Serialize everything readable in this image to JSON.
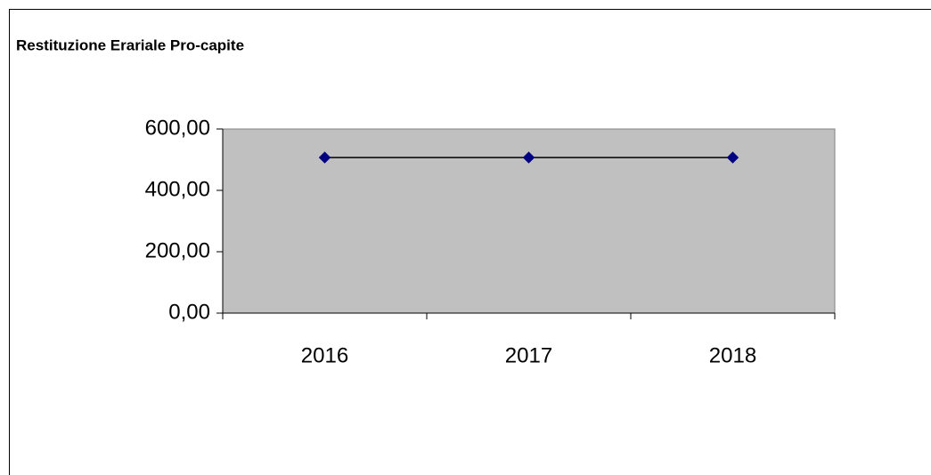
{
  "chart_data": {
    "type": "line",
    "title": "Restituzione Erariale Pro-capite",
    "categories": [
      "2016",
      "2017",
      "2018"
    ],
    "series": [
      {
        "name": "Restituzione Erariale Pro-capite",
        "color": "#000080",
        "values": [
          507,
          507,
          507
        ]
      }
    ],
    "ylim": [
      0,
      600
    ],
    "yticks": [
      {
        "value": 0,
        "label": "0,00"
      },
      {
        "value": 200,
        "label": "200,00"
      },
      {
        "value": 400,
        "label": "400,00"
      },
      {
        "value": 600,
        "label": "600,00"
      }
    ],
    "grid": false
  }
}
